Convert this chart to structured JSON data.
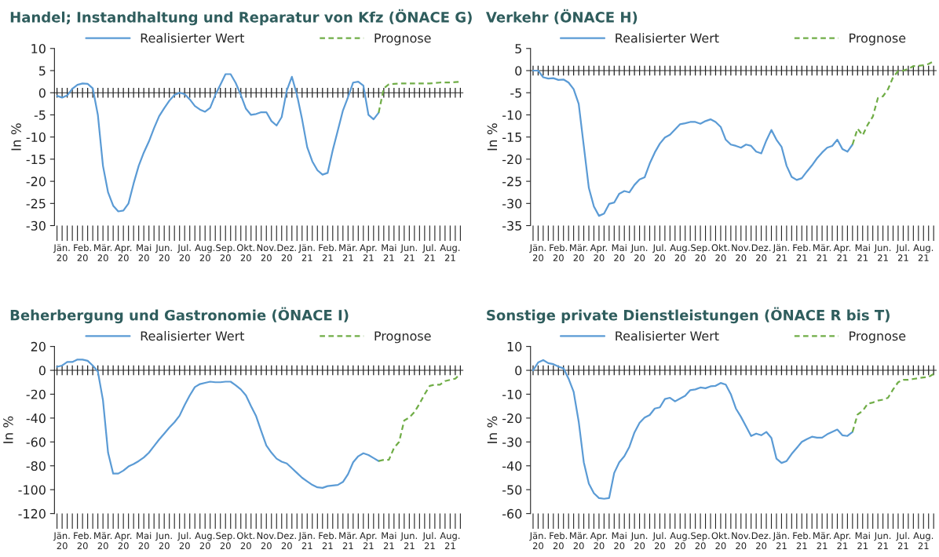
{
  "chart_data": [
    {
      "type": "line",
      "title": "Handel; Instandhaltung und Reparatur von Kfz (ÖNACE G)",
      "ylabel": "In %",
      "legend": "top",
      "ylim": [
        -30,
        10
      ],
      "yticks": [
        -30,
        -25,
        -20,
        -15,
        -10,
        -5,
        0,
        5,
        10
      ],
      "categories": [
        null,
        "Jän.\n20",
        null,
        null,
        null,
        "Feb.\n20",
        null,
        null,
        null,
        "Mär.\n20",
        null,
        null,
        null,
        "Apr.\n20",
        null,
        null,
        null,
        "Mai\n20",
        null,
        null,
        null,
        "Jun.\n20",
        null,
        null,
        null,
        "Jul.\n20",
        null,
        null,
        null,
        "Aug.\n20",
        null,
        null,
        null,
        "Sep.\n20",
        null,
        null,
        null,
        "Okt.\n20",
        null,
        null,
        null,
        "Nov.\n20",
        null,
        null,
        null,
        "Dez.\n20",
        null,
        null,
        null,
        "Jän.\n21",
        null,
        null,
        null,
        "Feb.\n21",
        null,
        null,
        null,
        "Mär.\n21",
        null,
        null,
        null,
        "Apr.\n21",
        null,
        null,
        null,
        "Mai\n21",
        null,
        null,
        null,
        "Jun.\n21",
        null,
        null,
        null,
        "Jul.\n21",
        null,
        null,
        null,
        "Aug.\n21",
        null,
        null
      ],
      "series": [
        {
          "name": "Realisierter Wert",
          "color": "#5b9bd5",
          "line_style": "solid",
          "values": [
            -0.7,
            -1.1,
            -0.6,
            0.9,
            1.8,
            2.1,
            2.0,
            1.0,
            -5,
            -16.5,
            -22.5,
            -25.5,
            -26.8,
            -26.6,
            -25,
            -20.5,
            -16.5,
            -13.5,
            -11,
            -8,
            -5.3,
            -3.5,
            -1.8,
            -0.5,
            0,
            -0.3,
            -1.5,
            -3,
            -3.8,
            -4.3,
            -3.4,
            -0.5,
            1.8,
            4.2,
            4.2,
            2.2,
            -0.5,
            -3.6,
            -5,
            -4.8,
            -4.4,
            -4.4,
            -6.4,
            -7.4,
            -5.5,
            0.5,
            3.6,
            -0.5,
            -6,
            -12.3,
            -15.5,
            -17.5,
            -18.5,
            -18.1,
            -13,
            -8.5,
            -4,
            -1,
            2.3,
            2.5,
            1.6,
            -5,
            -6,
            -4.5,
            null,
            null,
            null,
            null,
            null,
            null,
            null,
            null,
            null,
            null,
            null,
            null,
            null,
            null,
            null,
            null
          ]
        },
        {
          "name": "Prognose",
          "color": "#70ad47",
          "line_style": "dashed",
          "values": [
            null,
            null,
            null,
            null,
            null,
            null,
            null,
            null,
            null,
            null,
            null,
            null,
            null,
            null,
            null,
            null,
            null,
            null,
            null,
            null,
            null,
            null,
            null,
            null,
            null,
            null,
            null,
            null,
            null,
            null,
            null,
            null,
            null,
            null,
            null,
            null,
            null,
            null,
            null,
            null,
            null,
            null,
            null,
            null,
            null,
            null,
            null,
            null,
            null,
            null,
            null,
            null,
            null,
            null,
            null,
            null,
            null,
            null,
            null,
            null,
            null,
            null,
            null,
            -4.5,
            1,
            1.9,
            2,
            2.1,
            2.1,
            2.1,
            2.1,
            2.1,
            2.1,
            2.1,
            2.2,
            2.3,
            2.3,
            2.3,
            2.4,
            2.5
          ]
        }
      ]
    },
    {
      "type": "line",
      "title": "Verkehr (ÖNACE H)",
      "ylabel": "In %",
      "legend": "top",
      "ylim": [
        -35,
        5
      ],
      "yticks": [
        -35,
        -30,
        -25,
        -20,
        -15,
        -10,
        -5,
        0,
        5
      ],
      "categories": [
        null,
        "Jän.\n20",
        null,
        null,
        null,
        "Feb.\n20",
        null,
        null,
        null,
        "Mär.\n20",
        null,
        null,
        null,
        "Apr.\n20",
        null,
        null,
        null,
        "Mai\n20",
        null,
        null,
        null,
        "Jun.\n20",
        null,
        null,
        null,
        "Jul.\n20",
        null,
        null,
        null,
        "Aug.\n20",
        null,
        null,
        null,
        "Sep.\n20",
        null,
        null,
        null,
        "Okt.\n20",
        null,
        null,
        null,
        "Nov.\n20",
        null,
        null,
        null,
        "Dez.\n20",
        null,
        null,
        null,
        "Jän.\n21",
        null,
        null,
        null,
        "Feb.\n21",
        null,
        null,
        null,
        "Mär.\n21",
        null,
        null,
        null,
        "Apr.\n21",
        null,
        null,
        null,
        "Mai\n21",
        null,
        null,
        null,
        "Jun.\n21",
        null,
        null,
        null,
        "Jul.\n21",
        null,
        null,
        null,
        "Aug.\n21",
        null,
        null
      ],
      "series": [
        {
          "name": "Realisierter Wert",
          "color": "#5b9bd5",
          "line_style": "solid",
          "values": [
            0,
            0,
            -1.5,
            -1.8,
            -1.7,
            -2.1,
            -2,
            -2.7,
            -4.2,
            -7.5,
            -17,
            -26.5,
            -30.7,
            -32.8,
            -32.3,
            -30.1,
            -29.8,
            -27.8,
            -27.2,
            -27.5,
            -25.8,
            -24.6,
            -24.1,
            -21,
            -18.5,
            -16.5,
            -15.1,
            -14.5,
            -13.3,
            -12.1,
            -11.9,
            -11.6,
            -11.6,
            -12,
            -11.4,
            -11,
            -11.6,
            -12.7,
            -15.6,
            -16.7,
            -17,
            -17.4,
            -16.7,
            -17,
            -18.3,
            -18.7,
            -15.8,
            -13.4,
            -15.6,
            -17.2,
            -21.5,
            -24,
            -24.7,
            -24.3,
            -22.8,
            -21.4,
            -19.8,
            -18.5,
            -17.4,
            -17,
            -15.6,
            -17.7,
            -18.3,
            -16.7,
            null,
            null,
            null,
            null,
            null,
            null,
            null,
            null,
            null,
            null,
            null,
            null,
            null,
            null,
            null,
            null
          ]
        },
        {
          "name": "Prognose",
          "color": "#70ad47",
          "line_style": "dashed",
          "values": [
            null,
            null,
            null,
            null,
            null,
            null,
            null,
            null,
            null,
            null,
            null,
            null,
            null,
            null,
            null,
            null,
            null,
            null,
            null,
            null,
            null,
            null,
            null,
            null,
            null,
            null,
            null,
            null,
            null,
            null,
            null,
            null,
            null,
            null,
            null,
            null,
            null,
            null,
            null,
            null,
            null,
            null,
            null,
            null,
            null,
            null,
            null,
            null,
            null,
            null,
            null,
            null,
            null,
            null,
            null,
            null,
            null,
            null,
            null,
            null,
            null,
            null,
            null,
            -16.7,
            -13.1,
            -14.6,
            -12.2,
            -10.4,
            -6.2,
            -5.8,
            -4.2,
            -1.5,
            -0.1,
            0,
            0.4,
            1,
            1.1,
            1.2,
            1.5,
            2.1
          ]
        }
      ]
    },
    {
      "type": "line",
      "title": "Beherbergung und Gastronomie (ÖNACE I)",
      "ylabel": "In %",
      "legend": "top",
      "ylim": [
        -120,
        20
      ],
      "yticks": [
        -120,
        -100,
        -80,
        -60,
        -40,
        -20,
        0,
        20
      ],
      "categories": [
        null,
        "Jän.\n20",
        null,
        null,
        null,
        "Feb.\n20",
        null,
        null,
        null,
        "Mär.\n20",
        null,
        null,
        null,
        "Apr.\n20",
        null,
        null,
        null,
        "Mai\n20",
        null,
        null,
        null,
        "Jun.\n20",
        null,
        null,
        null,
        "Jul.\n20",
        null,
        null,
        null,
        "Aug.\n20",
        null,
        null,
        null,
        "Sep.\n20",
        null,
        null,
        null,
        "Okt.\n20",
        null,
        null,
        null,
        "Nov.\n20",
        null,
        null,
        null,
        "Dez.\n20",
        null,
        null,
        null,
        "Jän.\n21",
        null,
        null,
        null,
        "Feb.\n21",
        null,
        null,
        null,
        "Mär.\n21",
        null,
        null,
        null,
        "Apr.\n21",
        null,
        null,
        null,
        "Mai\n21",
        null,
        null,
        null,
        "Jun.\n21",
        null,
        null,
        null,
        "Jul.\n21",
        null,
        null,
        null,
        "Aug.\n21",
        null,
        null
      ],
      "series": [
        {
          "name": "Realisierter Wert",
          "color": "#5b9bd5",
          "line_style": "solid",
          "values": [
            3,
            4,
            7,
            7,
            9,
            9,
            8,
            4,
            -1,
            -25,
            -69,
            -86.5,
            -86.5,
            -84,
            -80.5,
            -78.5,
            -76,
            -73,
            -69,
            -63.5,
            -58,
            -53,
            -48,
            -43.5,
            -38,
            -29,
            -21,
            -14,
            -11.5,
            -10.5,
            -9.5,
            -10,
            -10,
            -9.5,
            -9.5,
            -12.5,
            -16,
            -21,
            -30,
            -38.5,
            -51,
            -63,
            -69,
            -74,
            -76.5,
            -78,
            -82,
            -86,
            -90,
            -93,
            -96,
            -98,
            -98.5,
            -97,
            -96.5,
            -96,
            -93.5,
            -87,
            -77,
            -72,
            -69.5,
            -71,
            -73.5,
            -76,
            null,
            null,
            null,
            null,
            null,
            null,
            null,
            null,
            null,
            null,
            null,
            null,
            null,
            null,
            null,
            null
          ]
        },
        {
          "name": "Prognose",
          "color": "#70ad47",
          "line_style": "dashed",
          "values": [
            null,
            null,
            null,
            null,
            null,
            null,
            null,
            null,
            null,
            null,
            null,
            null,
            null,
            null,
            null,
            null,
            null,
            null,
            null,
            null,
            null,
            null,
            null,
            null,
            null,
            null,
            null,
            null,
            null,
            null,
            null,
            null,
            null,
            null,
            null,
            null,
            null,
            null,
            null,
            null,
            null,
            null,
            null,
            null,
            null,
            null,
            null,
            null,
            null,
            null,
            null,
            null,
            null,
            null,
            null,
            null,
            null,
            null,
            null,
            null,
            null,
            null,
            null,
            -76,
            -75,
            -75,
            -65,
            -60,
            -42,
            -39.5,
            -35,
            -28,
            -20,
            -13,
            -12,
            -12,
            -9,
            -8,
            -7,
            -3
          ]
        }
      ]
    },
    {
      "type": "line",
      "title": "Sonstige private Dienstleistungen (ÖNACE R bis T)",
      "ylabel": "In %",
      "legend": "top",
      "ylim": [
        -60,
        10
      ],
      "yticks": [
        -60,
        -50,
        -40,
        -30,
        -20,
        -10,
        0,
        10
      ],
      "categories": [
        null,
        "Jän.\n20",
        null,
        null,
        null,
        "Feb.\n20",
        null,
        null,
        null,
        "Mär.\n20",
        null,
        null,
        null,
        "Apr.\n20",
        null,
        null,
        null,
        "Mai\n20",
        null,
        null,
        null,
        "Jun.\n20",
        null,
        null,
        null,
        "Jul.\n20",
        null,
        null,
        null,
        "Aug.\n20",
        null,
        null,
        null,
        "Sep.\n20",
        null,
        null,
        null,
        "Okt.\n20",
        null,
        null,
        null,
        "Nov.\n20",
        null,
        null,
        null,
        "Dez.\n20",
        null,
        null,
        null,
        "Jän.\n21",
        null,
        null,
        null,
        "Feb.\n21",
        null,
        null,
        null,
        "Mär.\n21",
        null,
        null,
        null,
        "Apr.\n21",
        null,
        null,
        null,
        "Mai\n21",
        null,
        null,
        null,
        "Jun.\n21",
        null,
        null,
        null,
        "Jul.\n21",
        null,
        null,
        null,
        "Aug.\n21",
        null,
        null
      ],
      "series": [
        {
          "name": "Realisierter Wert",
          "color": "#5b9bd5",
          "line_style": "solid",
          "values": [
            0,
            3.3,
            4.3,
            3,
            2.6,
            1.6,
            0.8,
            -3.5,
            -9,
            -21.5,
            -38.5,
            -47.5,
            -51.5,
            -53.5,
            -53.8,
            -53.5,
            -43,
            -38.5,
            -36,
            -32,
            -26,
            -22,
            -19.8,
            -18.7,
            -16,
            -15.5,
            -12,
            -11.5,
            -13,
            -11.8,
            -10.7,
            -8.3,
            -8,
            -7.2,
            -7.5,
            -6.7,
            -6.5,
            -5.3,
            -6,
            -10,
            -16,
            -19.5,
            -23.5,
            -27.5,
            -26.5,
            -27.2,
            -25.8,
            -28.3,
            -37,
            -38.8,
            -38,
            -35,
            -32.5,
            -30,
            -28.8,
            -27.8,
            -28.2,
            -28.2,
            -26.8,
            -25.8,
            -24.8,
            -27.2,
            -27.5,
            -25.8,
            null,
            null,
            null,
            null,
            null,
            null,
            null,
            null,
            null,
            null,
            null,
            null,
            null,
            null,
            null,
            null
          ]
        },
        {
          "name": "Prognose",
          "color": "#70ad47",
          "line_style": "dashed",
          "values": [
            null,
            null,
            null,
            null,
            null,
            null,
            null,
            null,
            null,
            null,
            null,
            null,
            null,
            null,
            null,
            null,
            null,
            null,
            null,
            null,
            null,
            null,
            null,
            null,
            null,
            null,
            null,
            null,
            null,
            null,
            null,
            null,
            null,
            null,
            null,
            null,
            null,
            null,
            null,
            null,
            null,
            null,
            null,
            null,
            null,
            null,
            null,
            null,
            null,
            null,
            null,
            null,
            null,
            null,
            null,
            null,
            null,
            null,
            null,
            null,
            null,
            null,
            null,
            -25.8,
            -18.5,
            -17,
            -14,
            -13.5,
            -12.7,
            -12.3,
            -11.5,
            -8,
            -5,
            -4,
            -4,
            -3.6,
            -3.3,
            -3,
            -2.8,
            -1.5
          ]
        }
      ]
    }
  ]
}
